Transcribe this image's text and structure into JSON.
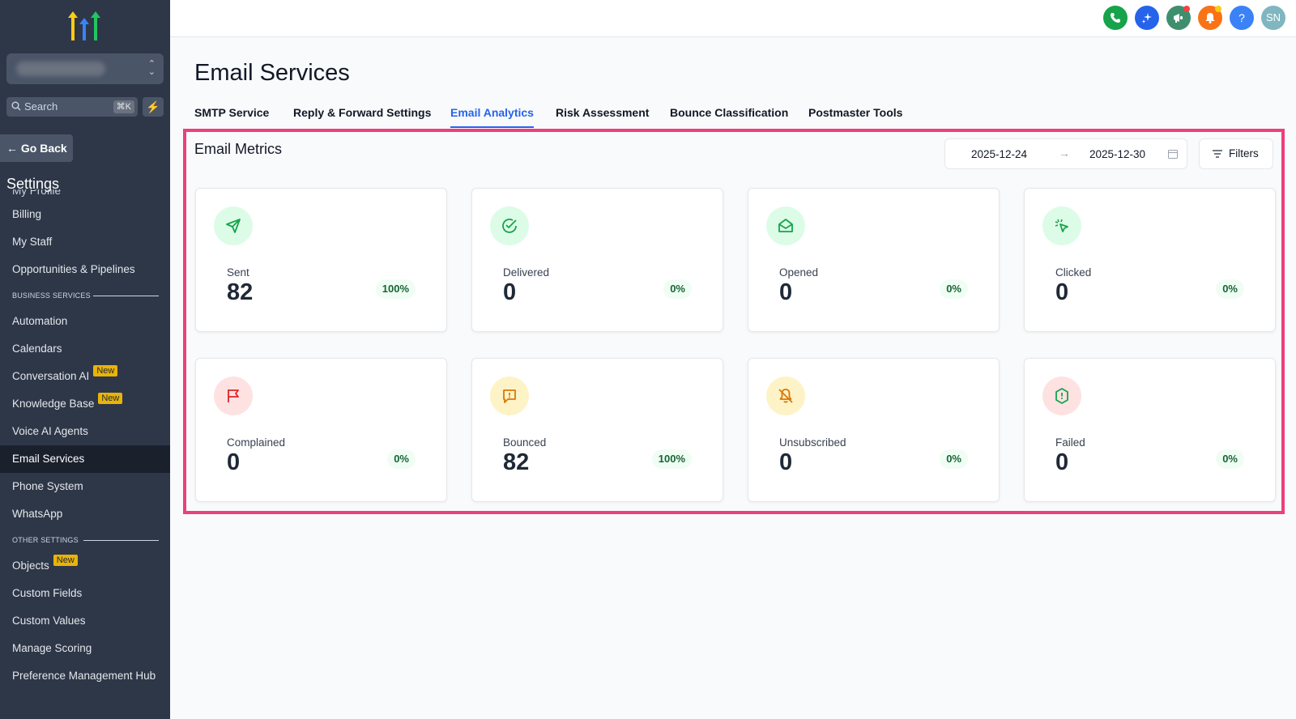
{
  "sidebar": {
    "search_placeholder": "Search",
    "search_shortcut": "⌘K",
    "go_back": "Go Back",
    "settings_title": "Settings",
    "partial_item": "My Profile",
    "items": [
      {
        "label": "Billing"
      },
      {
        "label": "My Staff"
      },
      {
        "label": "Opportunities & Pipelines"
      }
    ],
    "section_business": "BUSINESS SERVICES",
    "business_items": [
      {
        "label": "Automation",
        "badge": ""
      },
      {
        "label": "Calendars",
        "badge": ""
      },
      {
        "label": "Conversation AI",
        "badge": "New"
      },
      {
        "label": "Knowledge Base",
        "badge": "New"
      },
      {
        "label": "Voice AI Agents",
        "badge": ""
      },
      {
        "label": "Email Services",
        "badge": "",
        "active": true
      },
      {
        "label": "Phone System",
        "badge": ""
      },
      {
        "label": "WhatsApp",
        "badge": ""
      }
    ],
    "section_other": "OTHER SETTINGS",
    "other_items": [
      {
        "label": "Objects",
        "badge": "New"
      },
      {
        "label": "Custom Fields",
        "badge": ""
      },
      {
        "label": "Custom Values",
        "badge": ""
      },
      {
        "label": "Manage Scoring",
        "badge": ""
      },
      {
        "label": "Preference Management Hub",
        "badge": ""
      }
    ]
  },
  "topbar": {
    "icons": [
      "phone-icon",
      "sparkle-icon",
      "megaphone-icon",
      "bell-icon",
      "help-icon"
    ],
    "help_label": "?",
    "avatar_initials": "SN",
    "colors": {
      "phone": "#16a34a",
      "sparkle": "#2563eb",
      "megaphone": "#3f8f6f",
      "bell": "#f97316",
      "help": "#3b82f6",
      "avatar": "#7fb6c0"
    }
  },
  "page": {
    "title": "Email Services",
    "tabs": [
      {
        "label": "SMTP Service"
      },
      {
        "label": "Reply & Forward Settings"
      },
      {
        "label": "Email Analytics",
        "active": true
      },
      {
        "label": "Risk Assessment"
      },
      {
        "label": "Bounce Classification"
      },
      {
        "label": "Postmaster Tools"
      }
    ]
  },
  "metrics": {
    "title": "Email Metrics",
    "date_start": "2025-12-24",
    "date_end": "2025-12-30",
    "filters_label": "Filters",
    "cards": [
      {
        "label": "Sent",
        "value": "82",
        "pct": "100%",
        "icon": "send-icon"
      },
      {
        "label": "Delivered",
        "value": "0",
        "pct": "0%",
        "icon": "check-circle-icon"
      },
      {
        "label": "Opened",
        "value": "0",
        "pct": "0%",
        "icon": "mail-open-icon"
      },
      {
        "label": "Clicked",
        "value": "0",
        "pct": "0%",
        "icon": "cursor-click-icon"
      },
      {
        "label": "Complained",
        "value": "0",
        "pct": "0%",
        "icon": "flag-icon"
      },
      {
        "label": "Bounced",
        "value": "82",
        "pct": "100%",
        "icon": "message-alert-icon"
      },
      {
        "label": "Unsubscribed",
        "value": "0",
        "pct": "0%",
        "icon": "bell-off-icon"
      },
      {
        "label": "Failed",
        "value": "0",
        "pct": "0%",
        "icon": "shield-alert-icon"
      }
    ]
  }
}
